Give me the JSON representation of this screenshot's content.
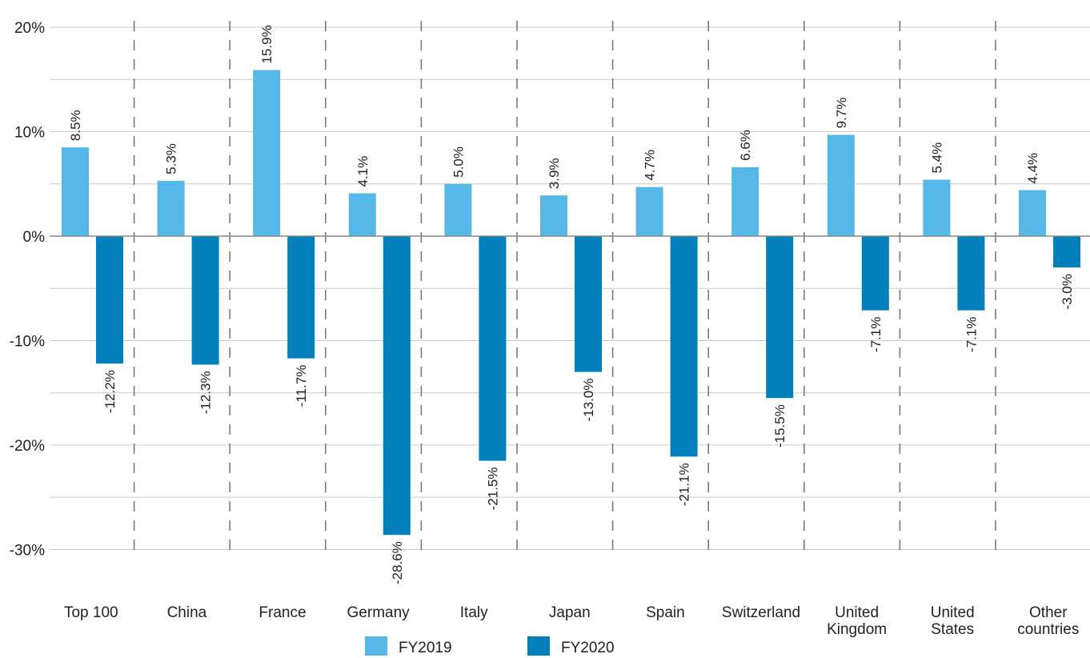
{
  "chart_data": {
    "type": "bar",
    "categories": [
      [
        "Top 100"
      ],
      [
        "China"
      ],
      [
        "France"
      ],
      [
        "Germany"
      ],
      [
        "Italy"
      ],
      [
        "Japan"
      ],
      [
        "Spain"
      ],
      [
        "Switzerland"
      ],
      [
        "United",
        "Kingdom"
      ],
      [
        "United",
        "States"
      ],
      [
        "Other",
        "countries"
      ]
    ],
    "series": [
      {
        "name": "FY2019",
        "color": "#56b8e8",
        "values": [
          8.5,
          5.3,
          15.9,
          4.1,
          5.0,
          3.9,
          4.7,
          6.6,
          9.7,
          5.4,
          4.4
        ],
        "labels": [
          "8.5%",
          "5.3%",
          "15.9%",
          "4.1%",
          "5.0%",
          "3.9%",
          "4.7%",
          "6.6%",
          "9.7%",
          "5.4%",
          "4.4%"
        ]
      },
      {
        "name": "FY2020",
        "color": "#0180bb",
        "values": [
          -12.2,
          -12.3,
          -11.7,
          -28.6,
          -21.5,
          -13.0,
          -21.1,
          -15.5,
          -7.1,
          -7.1,
          -3.0
        ],
        "labels": [
          "-12.2%",
          "-12.3%",
          "-11.7%",
          "-28.6%",
          "-21.5%",
          "-13.0%",
          "-21.1%",
          "-15.5%",
          "-7.1%",
          "-7.1%",
          "-3.0%"
        ]
      }
    ],
    "yticks": [
      20,
      10,
      0,
      -10,
      -20,
      -30
    ],
    "ytick_labels": [
      "20%",
      "10%",
      "0%",
      "-10%",
      "-20%",
      "-30%"
    ],
    "ylim": [
      -30,
      20
    ],
    "grid": true,
    "legend_position": "bottom-center"
  }
}
